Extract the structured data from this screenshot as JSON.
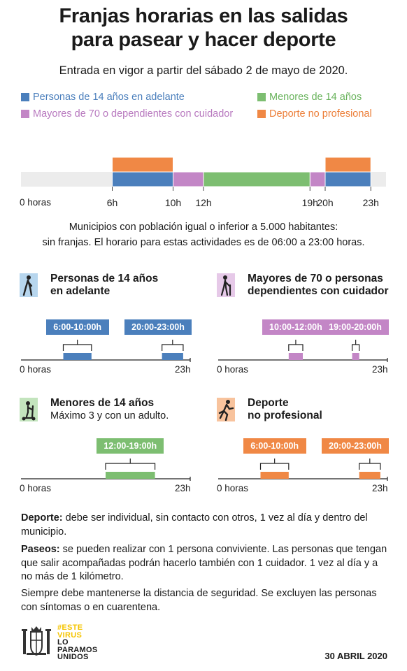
{
  "header": {
    "title_line1": "Franjas horarias en las salidas",
    "title_line2": "para pasear y hacer deporte",
    "subtitle": "Entrada en vigor a partir del sábado 2 de mayo de 2020."
  },
  "colors": {
    "blue": "#4b7fbc",
    "green": "#7dbe71",
    "purple": "#c386c6",
    "orange": "#f08845",
    "green_text": "#69b35c",
    "purple_text": "#b879bf",
    "orange_text": "#ec7e38",
    "track": "#ececec",
    "icon_blue_bg": "#b7d6ee",
    "icon_purple_bg": "#e6c9e8",
    "icon_green_bg": "#c3e4bd",
    "icon_orange_bg": "#f8c39d"
  },
  "legend": [
    {
      "label": "Personas de 14 años en adelante",
      "color": "blue"
    },
    {
      "label": "Menores de 14 años",
      "color": "green"
    },
    {
      "label": "Mayores de 70 o dependientes con cuidador",
      "color": "purple"
    },
    {
      "label": "Deporte no profesional",
      "color": "orange"
    }
  ],
  "main_axis": {
    "ticks": [
      {
        "hour": 0,
        "label": "0 horas",
        "strong": false
      },
      {
        "hour": 6,
        "label": "6h",
        "strong": true
      },
      {
        "hour": 10,
        "label": "10h",
        "strong": true
      },
      {
        "hour": 12,
        "label": "12h",
        "strong": true
      },
      {
        "hour": 19,
        "label": "19h",
        "strong": true
      },
      {
        "hour": 20,
        "label": "20h",
        "strong": true
      },
      {
        "hour": 23,
        "label": "23h",
        "strong": true
      }
    ]
  },
  "note": {
    "line1": "Municipios con población igual o inferior a 5.000 habitantes:",
    "line2": "sin franjas. El horario para estas actividades es de 06:00 a 23:00 horas."
  },
  "panels": [
    {
      "key": "adultos",
      "title1": "Personas de 14 años",
      "title2": "en adelante",
      "sub": "",
      "icon": "walking-person-icon",
      "icon_bg": "icon_blue_bg",
      "color": "blue",
      "axis_start": "0 horas",
      "axis_end": "23h",
      "tags": [
        "6:00-10:00h",
        "20:00-23:00h"
      ]
    },
    {
      "key": "mayores",
      "title1": "Mayores de 70 o personas",
      "title2": "dependientes con cuidador",
      "sub": "",
      "icon": "elderly-with-cane-icon",
      "icon_bg": "icon_purple_bg",
      "color": "purple",
      "axis_start": "0 horas",
      "axis_end": "23h",
      "tags": [
        "10:00-12:00h",
        "19:00-20:00h"
      ]
    },
    {
      "key": "menores",
      "title1": "Menores de 14 años",
      "title2": "",
      "sub": "Máximo 3 y con un adulto.",
      "icon": "child-scooter-icon",
      "icon_bg": "icon_green_bg",
      "color": "green",
      "axis_start": "0 horas",
      "axis_end": "23h",
      "tags": [
        "12:00-19:00h"
      ]
    },
    {
      "key": "deporte",
      "title1": "Deporte",
      "title2": "no profesional",
      "sub": "",
      "icon": "running-person-icon",
      "icon_bg": "icon_orange_bg",
      "color": "orange",
      "axis_start": "0 horas",
      "axis_end": "23h",
      "tags": [
        "6:00-10:00h",
        "20:00-23:00h"
      ]
    }
  ],
  "text_blocks": {
    "deporte_label": "Deporte:",
    "deporte_text": " debe ser individual, sin contacto con otros, 1 vez al día y dentro del municipio.",
    "paseos_label": "Paseos:",
    "paseos_text": " se pueden realizar con 1 persona conviviente. Las personas que tengan que salir acompañadas podrán hacerlo también con 1 cuidador. 1 vez al día y a no más de 1 kilómetro.",
    "seguridad_text": "Siempre debe mantenerse la distancia de seguridad. Se excluyen las personas con síntomas o en cuarentena."
  },
  "footer": {
    "logo_line1": "#ESTE",
    "logo_line2": "VIRUS",
    "logo_line3": "LO",
    "logo_line4": "PARAMOS",
    "logo_line5": "UNIDOS",
    "logo_highlight": "#f5c400",
    "date": "30 ABRIL 2020"
  },
  "chart_data": [
    {
      "type": "bar",
      "subtype": "timeline",
      "x_unit": "hours",
      "xlim": [
        0,
        23
      ],
      "series": [
        {
          "name": "Personas de 14 años en adelante",
          "color": "blue",
          "ranges": [
            [
              6,
              10
            ],
            [
              20,
              23
            ]
          ]
        },
        {
          "name": "Mayores de 70 o dependientes con cuidador",
          "color": "purple",
          "ranges": [
            [
              10,
              12
            ],
            [
              19,
              20
            ]
          ]
        },
        {
          "name": "Menores de 14 años",
          "color": "green",
          "ranges": [
            [
              12,
              19
            ]
          ]
        },
        {
          "name": "Deporte no profesional",
          "color": "orange",
          "ranges": [
            [
              6,
              10
            ],
            [
              20,
              23
            ]
          ]
        }
      ],
      "xticks": [
        "0 horas",
        "6h",
        "10h",
        "12h",
        "19h",
        "20h",
        "23h"
      ],
      "legend": "top"
    },
    {
      "type": "bar",
      "subtype": "timeline",
      "panel": "Personas de 14 años en adelante",
      "xlim": [
        0,
        23
      ],
      "ranges": [
        [
          6,
          10
        ],
        [
          20,
          23
        ]
      ]
    },
    {
      "type": "bar",
      "subtype": "timeline",
      "panel": "Mayores de 70 o personas dependientes con cuidador",
      "xlim": [
        0,
        23
      ],
      "ranges": [
        [
          10,
          12
        ],
        [
          19,
          20
        ]
      ]
    },
    {
      "type": "bar",
      "subtype": "timeline",
      "panel": "Menores de 14 años",
      "xlim": [
        0,
        23
      ],
      "ranges": [
        [
          12,
          19
        ]
      ]
    },
    {
      "type": "bar",
      "subtype": "timeline",
      "panel": "Deporte no profesional",
      "xlim": [
        0,
        23
      ],
      "ranges": [
        [
          6,
          10
        ],
        [
          20,
          23
        ]
      ]
    }
  ]
}
